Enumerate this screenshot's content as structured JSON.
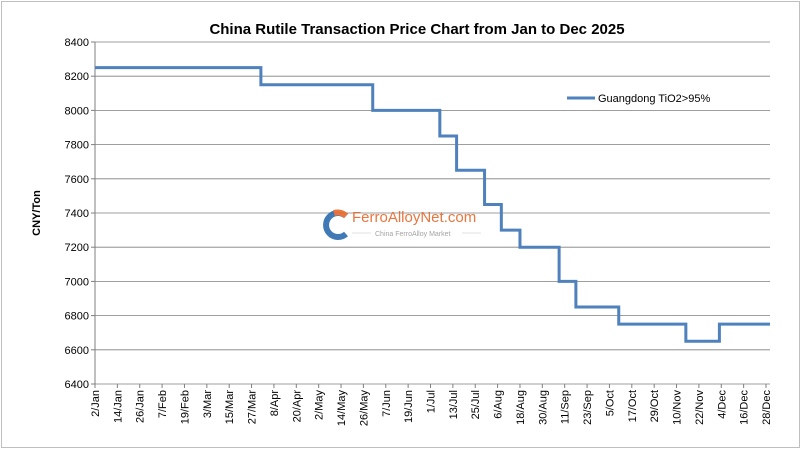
{
  "chart_data": {
    "type": "line",
    "title": "China Rutile Transaction Price Chart from Jan to Dec 2025",
    "xlabel": "",
    "ylabel": "CNY/Ton",
    "ylim": [
      6400,
      8400
    ],
    "yticks": [
      6400,
      6600,
      6800,
      7000,
      7200,
      7400,
      7600,
      7800,
      8000,
      8200,
      8400
    ],
    "xlim": [
      "2025-01-02",
      "2025-12-30"
    ],
    "xtick_labels": [
      "2/Jan",
      "14/Jan",
      "26/Jan",
      "7/Feb",
      "19/Feb",
      "3/Mar",
      "15/Mar",
      "27/Mar",
      "8/Apr",
      "20/Apr",
      "2/May",
      "14/May",
      "26/May",
      "7/Jun",
      "19/Jun",
      "1/Jul",
      "13/Jul",
      "25/Jul",
      "6/Aug",
      "18/Aug",
      "30/Aug",
      "11/Sep",
      "23/Sep",
      "5/Oct",
      "17/Oct",
      "29/Oct",
      "10/Nov",
      "22/Nov",
      "4/Dec",
      "16/Dec",
      "28/Dec"
    ],
    "grid": "horizontal",
    "legend_position": "top-right",
    "series": [
      {
        "name": "Guangdong TiO2>95%",
        "color": "#4f81bd",
        "step": true,
        "points": [
          [
            "2025-01-02",
            8250
          ],
          [
            "2025-04-01",
            8150
          ],
          [
            "2025-05-31",
            8000
          ],
          [
            "2025-07-06",
            7850
          ],
          [
            "2025-07-15",
            7650
          ],
          [
            "2025-07-30",
            7450
          ],
          [
            "2025-08-08",
            7300
          ],
          [
            "2025-08-18",
            7200
          ],
          [
            "2025-09-08",
            7000
          ],
          [
            "2025-09-17",
            6850
          ],
          [
            "2025-10-10",
            6750
          ],
          [
            "2025-11-15",
            6650
          ],
          [
            "2025-12-03",
            6750
          ],
          [
            "2025-12-30",
            6750
          ]
        ]
      }
    ]
  },
  "watermark": {
    "brand": "FerroAlloyNet.com",
    "tagline": "China FerroAlloy Market"
  }
}
